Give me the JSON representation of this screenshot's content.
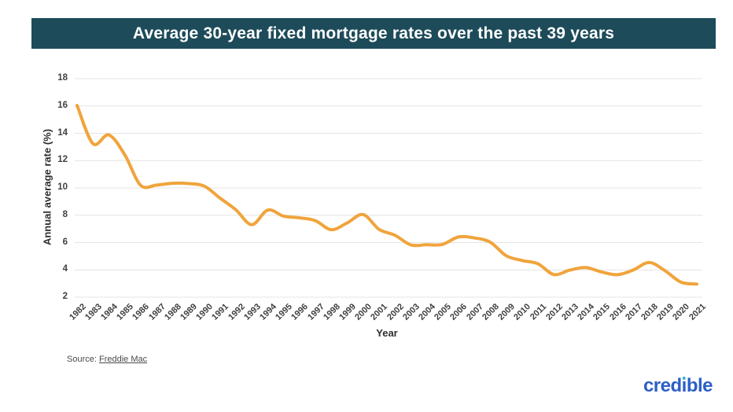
{
  "header": {
    "title": "Average 30-year fixed mortgage rates over the past 39 years",
    "background": "#1d4b5a",
    "text_color": "#ffffff"
  },
  "chart_data": {
    "type": "line",
    "title": "Average 30-year fixed mortgage rates over the past 39 years",
    "xlabel": "Year",
    "ylabel": "Annual average rate (%)",
    "x": [
      "1982",
      "1983",
      "1984",
      "1985",
      "1986",
      "1987",
      "1988",
      "1989",
      "1990",
      "1991",
      "1992",
      "1993",
      "1994",
      "1995",
      "1996",
      "1997",
      "1998",
      "1999",
      "2000",
      "2001",
      "2002",
      "2003",
      "2004",
      "2005",
      "2006",
      "2007",
      "2008",
      "2009",
      "2010",
      "2011",
      "2012",
      "2013",
      "2014",
      "2015",
      "2016",
      "2017",
      "2018",
      "2019",
      "2020",
      "2021"
    ],
    "values": [
      16.04,
      13.24,
      13.88,
      12.43,
      10.19,
      10.21,
      10.34,
      10.32,
      10.13,
      9.25,
      8.39,
      7.31,
      8.38,
      7.93,
      7.81,
      7.6,
      6.94,
      7.44,
      8.05,
      6.97,
      6.54,
      5.83,
      5.84,
      5.87,
      6.41,
      6.34,
      6.03,
      5.04,
      4.69,
      4.45,
      3.66,
      3.98,
      4.17,
      3.85,
      3.65,
      3.99,
      4.54,
      3.94,
      3.1,
      2.96
    ],
    "ylim": [
      2,
      18
    ],
    "yticks": [
      2,
      4,
      6,
      8,
      10,
      12,
      14,
      16,
      18
    ],
    "grid": "horizontal",
    "gridline_color": "#e4e4e4",
    "line_color": "#f0a43c",
    "smooth": true,
    "legend": "none"
  },
  "footer": {
    "source_prefix": "Source: ",
    "source_link": "Freddie Mac",
    "brand_part1": "cred",
    "brand_i": "ı",
    "brand_part2": "ble",
    "brand_color": "#2c5fc7",
    "brand_dot_color": "#3db3cd"
  }
}
